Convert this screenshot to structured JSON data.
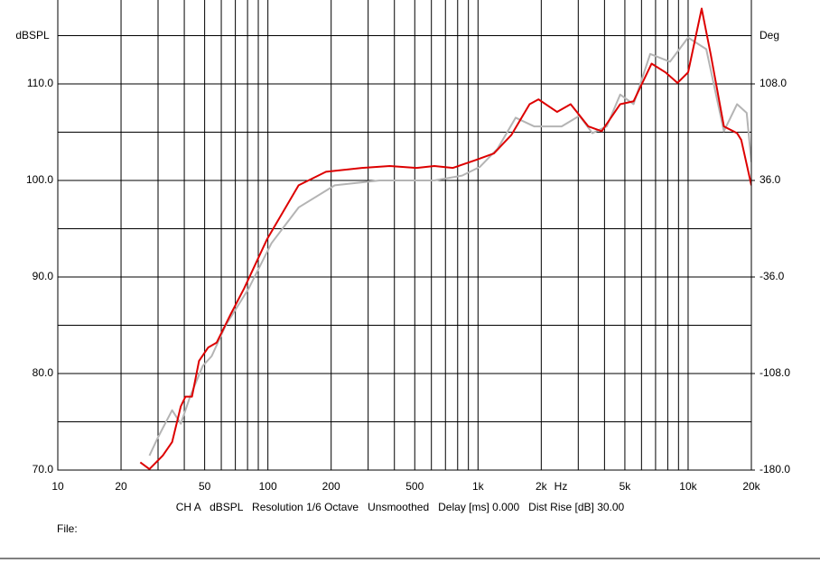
{
  "chart_data": {
    "type": "line",
    "ylabel": "dBSPL",
    "y2label": "Deg",
    "xlabel": "Hz",
    "log_x": true,
    "grid": true,
    "xlim": [
      10,
      20000
    ],
    "xticks": [
      {
        "value": 10,
        "label": "10"
      },
      {
        "value": 20,
        "label": "20"
      },
      {
        "value": 50,
        "label": "50"
      },
      {
        "value": 100,
        "label": "100"
      },
      {
        "value": 200,
        "label": "200"
      },
      {
        "value": 500,
        "label": "500"
      },
      {
        "value": 1000,
        "label": "1k"
      },
      {
        "value": 2000,
        "label": "2k"
      },
      {
        "value": 5000,
        "label": "5k"
      },
      {
        "value": 10000,
        "label": "10k"
      },
      {
        "value": 20000,
        "label": "20k"
      }
    ],
    "xminor": [
      30,
      40,
      60,
      70,
      80,
      90,
      300,
      400,
      600,
      700,
      800,
      900,
      3000,
      4000,
      6000,
      7000,
      8000,
      9000
    ],
    "ylim": [
      70,
      120
    ],
    "yticks": [
      {
        "value": 70,
        "label": "70.0"
      },
      {
        "value": 80,
        "label": "80.0"
      },
      {
        "value": 90,
        "label": "90.0"
      },
      {
        "value": 100,
        "label": "100.0"
      },
      {
        "value": 110,
        "label": "110.0"
      }
    ],
    "yminor": [
      75,
      85,
      95,
      105,
      115
    ],
    "y2lim": [
      -180,
      180
    ],
    "y2ticks": [
      {
        "value": -180,
        "label": "-180.0"
      },
      {
        "value": -108,
        "label": "-108.0"
      },
      {
        "value": -36,
        "label": "-36.0"
      },
      {
        "value": 36,
        "label": "36.0"
      },
      {
        "value": 108,
        "label": "108.0"
      }
    ],
    "series": [
      {
        "color": "#b4b4b4",
        "x": [
          27.3,
          30,
          35,
          38.5,
          42.6,
          49,
          54,
          63,
          81,
          104,
          140,
          208,
          340,
          620,
          840,
          1020,
          1240,
          1510,
          1850,
          2500,
          3040,
          3500,
          4100,
          4750,
          5500,
          6600,
          8200,
          10000,
          12200,
          14800,
          17100,
          19000,
          20000
        ],
        "values": [
          71.5,
          73.4,
          76.2,
          74.8,
          77.6,
          80.8,
          81.8,
          85,
          88.8,
          93.5,
          97.2,
          99.5,
          100,
          100,
          100.5,
          101.4,
          103.3,
          106.5,
          105.6,
          105.6,
          106.7,
          104.9,
          105.6,
          108.9,
          107.9,
          113.1,
          112.3,
          114.8,
          113.6,
          105.1,
          107.9,
          107,
          101.9
        ]
      },
      {
        "color": "#dd0000",
        "x": [
          24.7,
          27.3,
          31.6,
          35,
          38.5,
          40.5,
          43.5,
          47,
          52,
          57,
          66,
          77,
          99,
          140,
          189,
          280,
          380,
          510,
          620,
          760,
          970,
          1190,
          1440,
          1760,
          1940,
          2380,
          2760,
          3350,
          3880,
          4750,
          5500,
          6700,
          7800,
          8900,
          10000,
          11600,
          12800,
          14800,
          17100,
          17900,
          20000
        ],
        "values": [
          70.8,
          70.1,
          71.5,
          72.9,
          76.6,
          77.6,
          77.6,
          81.3,
          82.7,
          83.2,
          86,
          88.8,
          93.9,
          99.5,
          100.9,
          101.3,
          101.5,
          101.3,
          101.5,
          101.3,
          102.1,
          102.8,
          104.7,
          107.9,
          108.4,
          107.1,
          107.9,
          105.6,
          105.1,
          107.9,
          108.2,
          112.1,
          111.2,
          110.1,
          111.2,
          117.8,
          113.1,
          105.6,
          104.9,
          104.2,
          99.5
        ]
      }
    ],
    "footer": "CH A   dBSPL   Resolution 1/6 Octave   Unsmoothed   Delay [ms] 0.000   Dist Rise [dB] 30.00",
    "file_label": "File:"
  }
}
